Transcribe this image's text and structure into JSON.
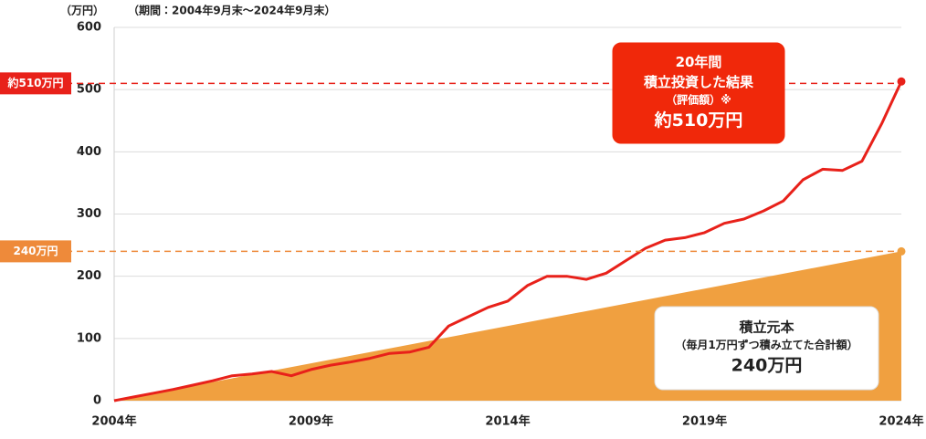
{
  "chart_data": {
    "type": "line",
    "subtitle": "（期間：2004年9月末～2024年9月末）",
    "y_unit": "（万円）",
    "xlim": [
      2004,
      2024
    ],
    "xticks": [
      {
        "value": 2004,
        "label": "2004年"
      },
      {
        "value": 2009,
        "label": "2009年"
      },
      {
        "value": 2014,
        "label": "2014年"
      },
      {
        "value": 2019,
        "label": "2019年"
      },
      {
        "value": 2024,
        "label": "2024年"
      }
    ],
    "ylim": [
      0,
      600
    ],
    "yticks": [
      0,
      100,
      200,
      300,
      400,
      500,
      600
    ],
    "grid": true,
    "series": [
      {
        "name": "評価額",
        "color": "#e8211a",
        "kind": "line",
        "x": [
          2004,
          2004.5,
          2005,
          2005.5,
          2006,
          2006.5,
          2007,
          2007.5,
          2008,
          2008.5,
          2009,
          2009.5,
          2010,
          2010.5,
          2011,
          2011.5,
          2012,
          2012.5,
          2013,
          2013.5,
          2014,
          2014.5,
          2015,
          2015.5,
          2016,
          2016.5,
          2017,
          2017.5,
          2018,
          2018.5,
          2019,
          2019.5,
          2020,
          2020.5,
          2021,
          2021.5,
          2022,
          2022.5,
          2023,
          2023.5,
          2024
        ],
        "values": [
          0,
          6,
          12,
          18,
          25,
          32,
          40,
          43,
          47,
          40,
          50,
          57,
          62,
          68,
          76,
          78,
          86,
          120,
          135,
          150,
          160,
          185,
          200,
          200,
          195,
          205,
          225,
          245,
          258,
          262,
          270,
          285,
          292,
          305,
          321,
          355,
          372,
          370,
          385,
          445,
          513
        ]
      },
      {
        "name": "積立元本",
        "color": "#f0a040",
        "kind": "area",
        "x": [
          2004,
          2024
        ],
        "values": [
          0,
          240
        ]
      }
    ],
    "reference_lines": [
      {
        "value": 510,
        "label": "約510万円",
        "color": "#e8211a"
      },
      {
        "value": 240,
        "label": "240万円",
        "color": "#ee8a3a"
      }
    ],
    "annotations": [
      {
        "color": "#f0280a",
        "lines": [
          "20年間",
          "積立投資した結果",
          "（評価額）※",
          "約510万円"
        ]
      },
      {
        "color": "#ffffff",
        "lines": [
          "積立元本",
          "（毎月1万円ずつ積み立てた合計額）",
          "240万円"
        ]
      }
    ]
  }
}
